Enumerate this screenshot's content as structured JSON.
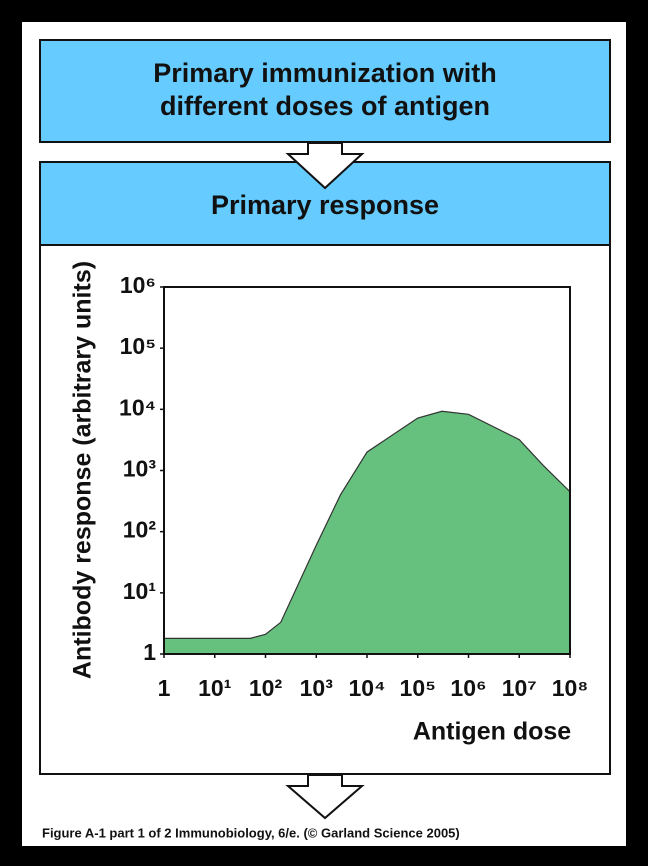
{
  "header": {
    "title_lines": [
      "Primary immunization with",
      "different doses of antigen"
    ]
  },
  "panel": {
    "title": "Primary response"
  },
  "caption": "Figure A-1 part 1 of 2  Immunobiology, 6/e. (© Garland Science 2005)",
  "chart_data": {
    "type": "area",
    "xlabel": "Antigen dose",
    "ylabel": "Antibody response (arbitrary units)",
    "x": [
      1,
      10,
      50,
      100,
      200,
      1000,
      3000,
      10000,
      100000,
      300000,
      1000000,
      10000000,
      30000000,
      100000000
    ],
    "values": [
      1.8,
      1.8,
      1.8,
      2.1,
      3.3,
      60,
      400,
      2000,
      7200,
      9300,
      8300,
      3200,
      1200,
      450
    ],
    "color": "#66c17e",
    "log_x": true,
    "log_y": true,
    "xlim": [
      1,
      100000000
    ],
    "ylim": [
      1,
      1000000
    ],
    "xticks": [
      1,
      {
        "value": 10,
        "label": "10¹"
      },
      {
        "value": 100,
        "label": "10²"
      },
      {
        "value": 1000,
        "label": "10³"
      },
      {
        "value": 10000,
        "label": "10⁴"
      },
      {
        "value": 100000,
        "label": "10⁵"
      },
      {
        "value": 1000000,
        "label": "10⁶"
      },
      {
        "value": 10000000,
        "label": "10⁷"
      },
      {
        "value": 100000000,
        "label": "10⁸"
      }
    ],
    "yticks": [
      1,
      {
        "value": 10,
        "label": "10¹"
      },
      {
        "value": 100,
        "label": "10²"
      },
      {
        "value": 1000,
        "label": "10³"
      },
      {
        "value": 10000,
        "label": "10⁴"
      },
      {
        "value": 100000,
        "label": "10⁵"
      },
      {
        "value": 1000000,
        "label": "10⁶"
      }
    ],
    "grid": false
  }
}
